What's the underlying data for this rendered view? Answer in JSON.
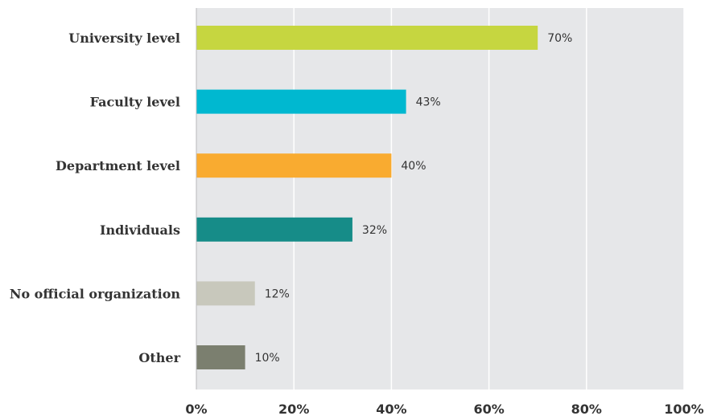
{
  "chart_data": {
    "type": "bar",
    "orientation": "horizontal",
    "categories": [
      "University level",
      "Faculty level",
      "Department level",
      "Individuals",
      "No official organization",
      "Other"
    ],
    "values": [
      70,
      43,
      40,
      32,
      12,
      10
    ],
    "value_labels": [
      "70%",
      "43%",
      "40%",
      "32%",
      "12%",
      "10%"
    ],
    "colors": [
      "#c6d640",
      "#00b8d0",
      "#f9ab30",
      "#168c88",
      "#c8c8bc",
      "#7b7f6f"
    ],
    "xlim": [
      0,
      100
    ],
    "x_ticks": [
      0,
      20,
      40,
      60,
      80,
      100
    ],
    "x_tick_labels": [
      "0%",
      "20%",
      "40%",
      "60%",
      "80%",
      "100%"
    ],
    "grid": true,
    "plot_background": "#e6e7e9",
    "title": "",
    "xlabel": "",
    "ylabel": ""
  }
}
